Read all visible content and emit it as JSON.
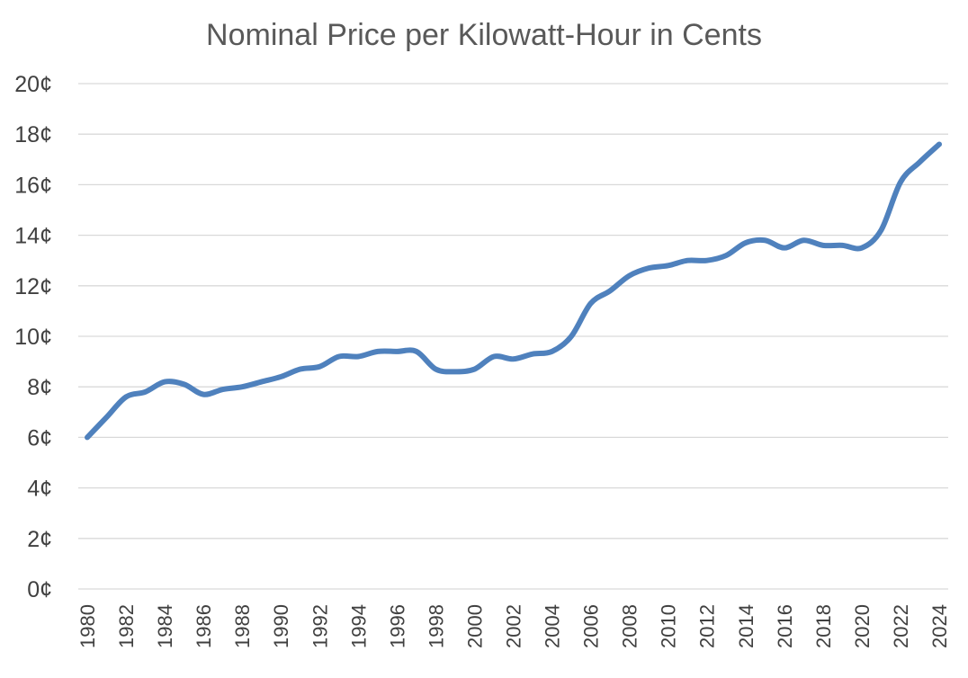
{
  "chart_data": {
    "type": "line",
    "title": "Nominal Price per Kilowatt-Hour in Cents",
    "xlabel": "",
    "ylabel": "",
    "ylim": [
      0,
      20
    ],
    "y_ticks": [
      0,
      2,
      4,
      6,
      8,
      10,
      12,
      14,
      16,
      18,
      20
    ],
    "y_tick_labels": [
      "0¢",
      "2¢",
      "4¢",
      "6¢",
      "8¢",
      "10¢",
      "12¢",
      "14¢",
      "16¢",
      "18¢",
      "20¢"
    ],
    "x_tick_labels": [
      "1980",
      "1982",
      "1984",
      "1986",
      "1988",
      "1990",
      "1992",
      "1994",
      "1996",
      "1998",
      "2000",
      "2002",
      "2004",
      "2006",
      "2008",
      "2010",
      "2012",
      "2014",
      "2016",
      "2018",
      "2020",
      "2022",
      "2024"
    ],
    "grid": true,
    "legend": "none",
    "x": [
      1980,
      1981,
      1982,
      1983,
      1984,
      1985,
      1986,
      1987,
      1988,
      1989,
      1990,
      1991,
      1992,
      1993,
      1994,
      1995,
      1996,
      1997,
      1998,
      1999,
      2000,
      2001,
      2002,
      2003,
      2004,
      2005,
      2006,
      2007,
      2008,
      2009,
      2010,
      2011,
      2012,
      2013,
      2014,
      2015,
      2016,
      2017,
      2018,
      2019,
      2020,
      2021,
      2022,
      2023,
      2024
    ],
    "series": [
      {
        "color": "#4f81bd",
        "values": [
          6.0,
          6.8,
          7.6,
          7.8,
          8.2,
          8.1,
          7.7,
          7.9,
          8.0,
          8.2,
          8.4,
          8.7,
          8.8,
          9.2,
          9.2,
          9.4,
          9.4,
          9.4,
          8.7,
          8.6,
          8.7,
          9.2,
          9.1,
          9.3,
          9.4,
          10.0,
          11.3,
          11.8,
          12.4,
          12.7,
          12.8,
          13.0,
          13.0,
          13.2,
          13.7,
          13.8,
          13.5,
          13.8,
          13.6,
          13.6,
          13.5,
          14.2,
          16.1,
          16.9,
          17.6
        ]
      }
    ]
  }
}
